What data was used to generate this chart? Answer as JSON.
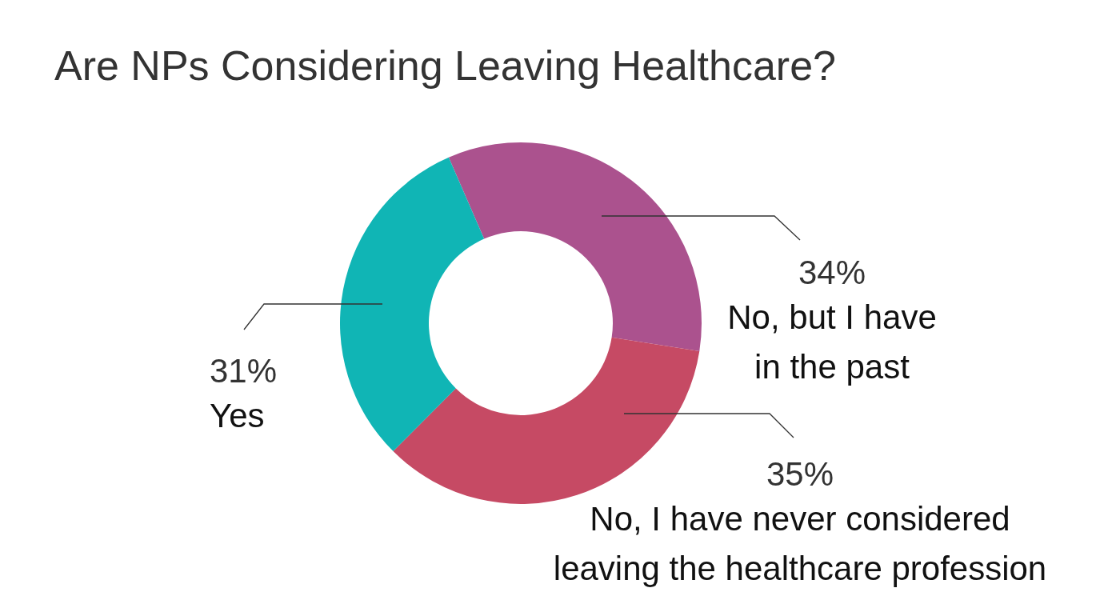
{
  "chart_data": {
    "type": "donut",
    "title": "Are NPs Considering Leaving Healthcare?",
    "categories": [
      "No, but I have in the past",
      "No, I have never considered leaving the healthcare profession",
      "Yes"
    ],
    "values": [
      34,
      35,
      31
    ],
    "value_labels": [
      "34%",
      "35%",
      "31%"
    ],
    "colors": [
      "#ab528e",
      "#c64a64",
      "#10b5b5"
    ]
  }
}
